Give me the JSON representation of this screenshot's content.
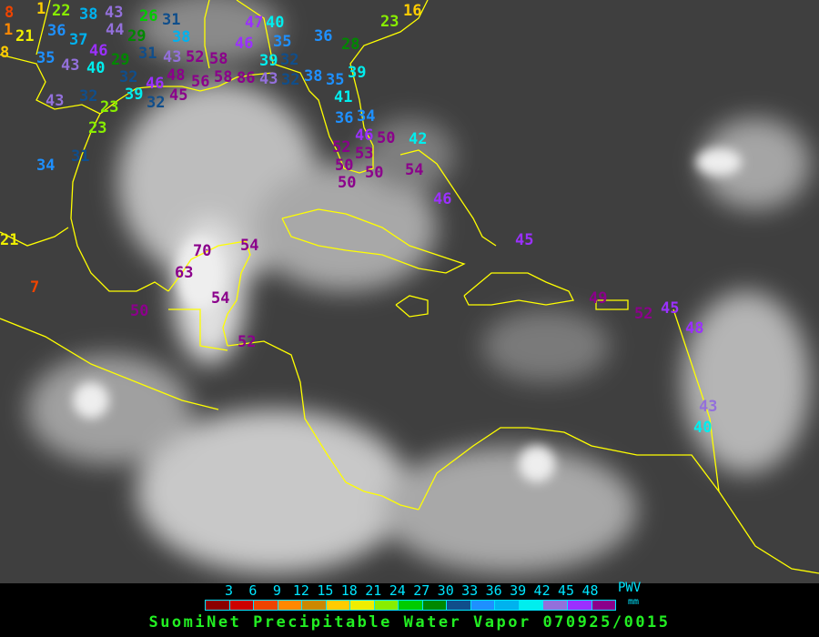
{
  "title": "SuomiNet Precipitable Water Vapor 070925/0015",
  "legend": {
    "unit_label": "PWV",
    "unit": "mm",
    "ticks": [
      "3",
      "6",
      "9",
      "12",
      "15",
      "18",
      "21",
      "24",
      "27",
      "30",
      "33",
      "36",
      "39",
      "42",
      "45",
      "48"
    ],
    "colors": [
      "#8b0000",
      "#cc0000",
      "#ee4400",
      "#ff8800",
      "#cc8800",
      "#ffcc00",
      "#eeee00",
      "#88ee00",
      "#00cc00",
      "#008800",
      "#104e8b",
      "#1e90ff",
      "#00b2ee",
      "#00eeee",
      "#9370db",
      "#9b30ff",
      "#8b008b"
    ]
  },
  "stations": [
    {
      "value": "8",
      "color": "#ee4400"
    },
    {
      "value": "1",
      "color": "#ff8800"
    },
    {
      "value": "21",
      "color": "#eeee00"
    },
    {
      "value": "8",
      "color": "#ffcc00"
    },
    {
      "value": "1",
      "color": "#ffcc00"
    },
    {
      "value": "22",
      "color": "#88ee00"
    },
    {
      "value": "38",
      "color": "#00b2ee"
    },
    {
      "value": "43",
      "color": "#9370db"
    },
    {
      "value": "44",
      "color": "#9370db"
    },
    {
      "value": "26",
      "color": "#00cc00"
    },
    {
      "value": "31",
      "color": "#104e8b"
    },
    {
      "value": "38",
      "color": "#00b2ee"
    },
    {
      "value": "36",
      "color": "#1e90ff"
    },
    {
      "value": "37",
      "color": "#00b2ee"
    },
    {
      "value": "46",
      "color": "#9b30ff"
    },
    {
      "value": "35",
      "color": "#1e90ff"
    },
    {
      "value": "43",
      "color": "#9370db"
    },
    {
      "value": "40",
      "color": "#00eeee"
    },
    {
      "value": "29",
      "color": "#008800"
    },
    {
      "value": "29",
      "color": "#008800"
    },
    {
      "value": "31",
      "color": "#104e8b"
    },
    {
      "value": "43",
      "color": "#9370db"
    },
    {
      "value": "52",
      "color": "#8b008b"
    },
    {
      "value": "48",
      "color": "#8b008b"
    },
    {
      "value": "32",
      "color": "#104e8b"
    },
    {
      "value": "46",
      "color": "#9b30ff"
    },
    {
      "value": "45",
      "color": "#8b008b"
    },
    {
      "value": "56",
      "color": "#8b008b"
    },
    {
      "value": "58",
      "color": "#8b008b"
    },
    {
      "value": "58",
      "color": "#8b008b"
    },
    {
      "value": "86",
      "color": "#8b008b"
    },
    {
      "value": "43",
      "color": "#9370db"
    },
    {
      "value": "39",
      "color": "#00eeee"
    },
    {
      "value": "32",
      "color": "#104e8b"
    },
    {
      "value": "43",
      "color": "#9370db"
    },
    {
      "value": "32",
      "color": "#104e8b"
    },
    {
      "value": "23",
      "color": "#88ee00"
    },
    {
      "value": "23",
      "color": "#88ee00"
    },
    {
      "value": "31",
      "color": "#104e8b"
    },
    {
      "value": "34",
      "color": "#1e90ff"
    },
    {
      "value": "40",
      "color": "#00eeee"
    },
    {
      "value": "35",
      "color": "#1e90ff"
    },
    {
      "value": "32",
      "color": "#104e8b"
    },
    {
      "value": "36",
      "color": "#1e90ff"
    },
    {
      "value": "28",
      "color": "#008800"
    },
    {
      "value": "23",
      "color": "#88ee00"
    },
    {
      "value": "16",
      "color": "#ffcc00"
    },
    {
      "value": "39",
      "color": "#00eeee"
    },
    {
      "value": "32",
      "color": "#104e8b"
    },
    {
      "value": "38",
      "color": "#1e90ff"
    },
    {
      "value": "35",
      "color": "#1e90ff"
    },
    {
      "value": "41",
      "color": "#00eeee"
    },
    {
      "value": "39",
      "color": "#00eeee"
    },
    {
      "value": "46",
      "color": "#9b30ff"
    },
    {
      "value": "47",
      "color": "#9b30ff"
    },
    {
      "value": "36",
      "color": "#1e90ff"
    },
    {
      "value": "34",
      "color": "#1e90ff"
    },
    {
      "value": "46",
      "color": "#9b30ff"
    },
    {
      "value": "50",
      "color": "#8b008b"
    },
    {
      "value": "52",
      "color": "#8b008b"
    },
    {
      "value": "53",
      "color": "#8b008b"
    },
    {
      "value": "50",
      "color": "#8b008b"
    },
    {
      "value": "50",
      "color": "#8b008b"
    },
    {
      "value": "50",
      "color": "#8b008b"
    },
    {
      "value": "42",
      "color": "#00eeee"
    },
    {
      "value": "54",
      "color": "#8b008b"
    },
    {
      "value": "46",
      "color": "#9b30ff"
    },
    {
      "value": "45",
      "color": "#9b30ff"
    },
    {
      "value": "21",
      "color": "#eeee00"
    },
    {
      "value": "7",
      "color": "#ee4400"
    },
    {
      "value": "70",
      "color": "#8b008b"
    },
    {
      "value": "63",
      "color": "#8b008b"
    },
    {
      "value": "54",
      "color": "#8b008b"
    },
    {
      "value": "54",
      "color": "#8b008b"
    },
    {
      "value": "50",
      "color": "#8b008b"
    },
    {
      "value": "52",
      "color": "#8b008b"
    },
    {
      "value": "49",
      "color": "#8b008b"
    },
    {
      "value": "52",
      "color": "#8b008b"
    },
    {
      "value": "45",
      "color": "#9b30ff"
    },
    {
      "value": "48",
      "color": "#9b30ff"
    },
    {
      "value": "43",
      "color": "#9370db"
    },
    {
      "value": "40",
      "color": "#00eeee"
    }
  ]
}
